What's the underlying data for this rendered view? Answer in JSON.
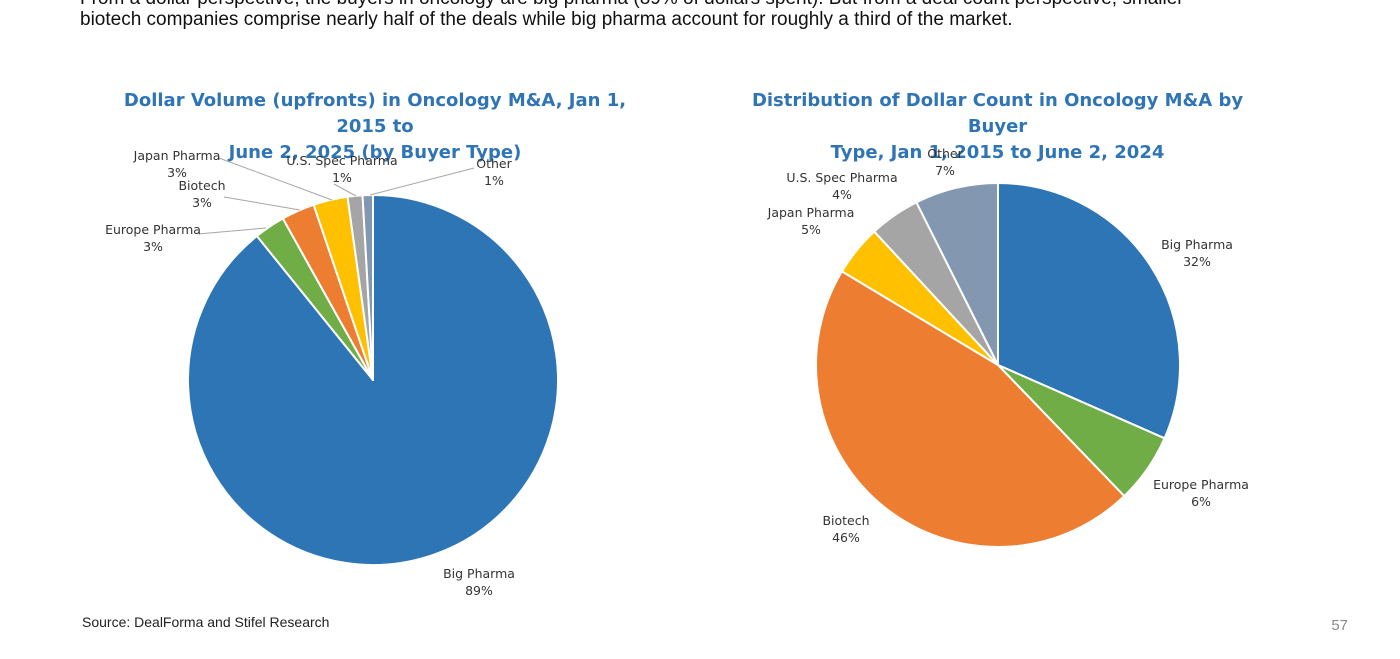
{
  "intro": {
    "line1": "From a dollar perspective, the buyers in oncology are big pharma (89% of dollars spent). But from a deal count perspective, smaller",
    "line2": "biotech companies comprise nearly half of the deals while big pharma account for roughly a third of the market."
  },
  "source": "Source: DealForma and Stifel Research",
  "page_number": "57",
  "chart_data": [
    {
      "type": "pie",
      "title": "Dollar Volume (upfronts) in Oncology M&A, Jan 1, 2015 to June 2, 2025 (by Buyer Type)",
      "title_lines": [
        "Dollar Volume (upfronts) in Oncology M&A, Jan 1, 2015 to",
        "June 2, 2025 (by Buyer Type)"
      ],
      "slices": [
        {
          "name": "Big Pharma",
          "label": "89%",
          "value": 89.2,
          "color": "#2e75b6"
        },
        {
          "name": "Europe Pharma",
          "label": "3%",
          "value": 2.7,
          "color": "#70ad47"
        },
        {
          "name": "Biotech",
          "label": "3%",
          "value": 2.9,
          "color": "#ed7d31"
        },
        {
          "name": "Japan Pharma",
          "label": "3%",
          "value": 3.0,
          "color": "#ffc000"
        },
        {
          "name": "U.S. Spec Pharma",
          "label": "1%",
          "value": 1.3,
          "color": "#a5a5a5"
        },
        {
          "name": "Other",
          "label": "1%",
          "value": 0.9,
          "color": "#8497b0"
        }
      ]
    },
    {
      "type": "pie",
      "title": "Distribution of Dollar Count in Oncology M&A by Buyer Type, Jan 1, 2015 to June 2, 2024",
      "title_lines": [
        "Distribution of Dollar Count in Oncology M&A by Buyer",
        "Type, Jan 1, 2015 to June 2, 2024"
      ],
      "slices": [
        {
          "name": "Big Pharma",
          "label": "32%",
          "value": 31.6,
          "color": "#2e75b6"
        },
        {
          "name": "Europe Pharma",
          "label": "6%",
          "value": 6.2,
          "color": "#70ad47"
        },
        {
          "name": "Biotech",
          "label": "46%",
          "value": 45.8,
          "color": "#ed7d31"
        },
        {
          "name": "Japan Pharma",
          "label": "5%",
          "value": 4.5,
          "color": "#ffc000"
        },
        {
          "name": "U.S. Spec Pharma",
          "label": "4%",
          "value": 4.5,
          "color": "#a5a5a5"
        },
        {
          "name": "Other",
          "label": "7%",
          "value": 7.4,
          "color": "#8497b0"
        }
      ]
    }
  ]
}
